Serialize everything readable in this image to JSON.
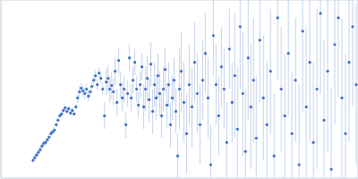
{
  "chart_data": {
    "type": "scatter",
    "color": "#3f6fc6",
    "error_color": "#c3d2ec",
    "marker": "circle",
    "grid": true,
    "tick_labels": false,
    "xlim": [
      0,
      400
    ],
    "xticks": [
      115
    ],
    "ylim": [
      -100,
      100
    ],
    "yticks": [
      0
    ],
    "x": [
      36,
      38,
      40,
      42,
      44,
      46,
      48,
      50,
      52,
      54,
      56,
      58,
      60,
      62,
      64,
      66,
      68,
      70,
      72,
      74,
      76,
      78,
      80,
      82,
      84,
      86,
      88,
      90,
      92,
      94,
      96,
      98,
      100,
      102,
      104,
      106,
      108,
      110,
      112,
      114,
      116,
      118,
      120,
      122,
      124,
      126,
      128,
      130,
      132,
      134,
      136,
      138,
      140,
      142,
      144,
      146,
      148,
      150,
      152,
      154,
      156,
      158,
      160,
      162,
      164,
      166,
      168,
      170,
      172,
      174,
      176,
      178,
      180,
      182,
      184,
      186,
      188,
      190,
      192,
      194,
      196,
      198,
      200,
      202,
      205,
      208,
      211,
      214,
      217,
      220,
      223,
      226,
      229,
      232,
      235,
      238,
      241,
      244,
      247,
      250,
      253,
      256,
      259,
      262,
      265,
      268,
      271,
      274,
      277,
      280,
      283,
      286,
      290,
      294,
      298,
      302,
      306,
      310,
      314,
      318,
      322,
      326,
      330,
      334,
      338,
      342,
      346,
      350,
      354,
      358,
      362,
      366,
      370,
      374,
      378,
      382,
      386,
      390,
      394,
      398
    ],
    "values": [
      -80,
      -77,
      -74,
      -71,
      -68,
      -64,
      -61,
      -60,
      -57,
      -54,
      -50,
      -48,
      -46,
      -40,
      -35,
      -30,
      -28,
      -24,
      -21,
      -25,
      -22,
      -27,
      -24,
      -28,
      -20,
      -10,
      -3,
      1,
      -2,
      -5,
      0,
      -8,
      -3,
      3,
      10,
      15,
      5,
      18,
      12,
      0,
      -30,
      8,
      12,
      0,
      4,
      -3,
      20,
      -15,
      32,
      5,
      -10,
      0,
      -40,
      -5,
      35,
      -10,
      10,
      30,
      0,
      -18,
      5,
      25,
      -20,
      0,
      12,
      -12,
      28,
      -25,
      5,
      -10,
      15,
      -5,
      -30,
      0,
      22,
      -18,
      5,
      -40,
      -10,
      10,
      -25,
      -75,
      0,
      20,
      -15,
      -50,
      5,
      -20,
      30,
      -5,
      -40,
      10,
      40,
      -10,
      -85,
      60,
      5,
      -30,
      25,
      0,
      -60,
      45,
      -15,
      15,
      -45,
      70,
      -5,
      -70,
      35,
      -20,
      10,
      -55,
      55,
      -10,
      -40,
      20,
      -75,
      80,
      0,
      -30,
      40,
      -50,
      10,
      -85,
      65,
      -20,
      30,
      -60,
      0,
      85,
      -35,
      20,
      -90,
      50,
      80,
      -10,
      -50,
      30,
      70,
      5
    ],
    "errors": [
      3,
      3,
      3,
      3,
      3,
      3,
      3,
      3,
      3,
      3,
      3,
      3,
      3,
      3,
      3,
      3,
      3,
      3,
      3,
      3,
      3,
      3,
      3,
      3,
      3,
      6,
      6,
      6,
      6,
      6,
      6,
      6,
      6,
      6,
      6,
      6,
      6,
      6,
      6,
      6,
      15,
      15,
      15,
      15,
      15,
      15,
      15,
      15,
      15,
      15,
      15,
      15,
      15,
      15,
      15,
      15,
      15,
      15,
      15,
      15,
      15,
      15,
      25,
      25,
      25,
      25,
      25,
      25,
      25,
      25,
      25,
      25,
      25,
      25,
      25,
      25,
      25,
      25,
      25,
      25,
      25,
      25,
      45,
      45,
      45,
      45,
      45,
      45,
      45,
      45,
      45,
      45,
      45,
      45,
      45,
      45,
      45,
      45,
      45,
      45,
      45,
      45,
      45,
      70,
      70,
      70,
      70,
      70,
      70,
      70,
      70,
      70,
      70,
      70,
      70,
      70,
      70,
      70,
      70,
      70,
      70,
      70,
      70,
      90,
      90,
      90,
      90,
      90,
      90,
      90,
      90,
      90,
      90,
      90,
      90,
      90,
      90,
      90,
      90,
      90
    ]
  }
}
